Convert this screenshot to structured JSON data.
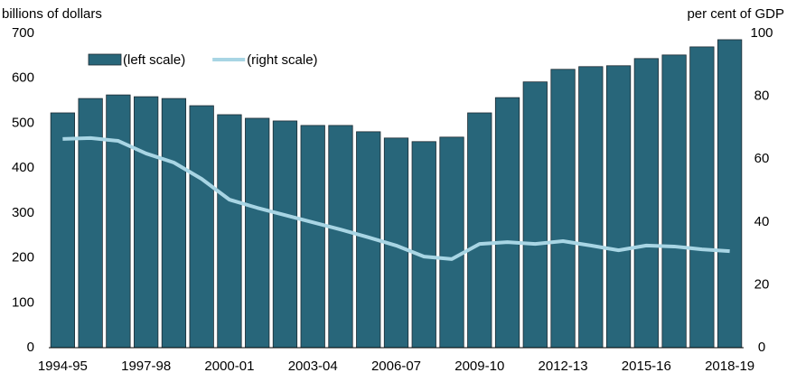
{
  "chart_data": {
    "type": "bar-line",
    "y_label": "billions of dollars",
    "y2_label": "per cent of GDP",
    "categories": [
      "1994-95",
      null,
      null,
      "1997-98",
      null,
      null,
      "2000-01",
      null,
      null,
      "2003-04",
      null,
      null,
      "2006-07",
      null,
      null,
      "2009-10",
      null,
      null,
      "2012-13",
      null,
      null,
      "2015-16",
      null,
      null,
      "2018-19"
    ],
    "series": [
      {
        "name": "(left scale)",
        "color": "#28667a",
        "type": "bar",
        "values": [
          523,
          555,
          563,
          559,
          555,
          539,
          519,
          511,
          505,
          495,
          495,
          481,
          467,
          459,
          469,
          523,
          557,
          592,
          620,
          626,
          628,
          644,
          652,
          670,
          686
        ]
      },
      {
        "name": "(right scale)",
        "color": "#a8d5e4",
        "type": "line",
        "axis": "y2",
        "values": [
          66.4,
          66.7,
          65.8,
          61.8,
          58.9,
          53.7,
          47.1,
          44.5,
          42.2,
          39.9,
          37.6,
          35.1,
          32.5,
          29.0,
          28.2,
          33.0,
          33.6,
          33.0,
          33.9,
          32.5,
          31.0,
          32.5,
          32.2,
          31.3,
          30.7
        ]
      }
    ],
    "ylim": [
      0,
      700
    ],
    "yticks": [
      0,
      100,
      200,
      300,
      400,
      500,
      600,
      700
    ],
    "y2lim": [
      0,
      100
    ],
    "y2ticks": [
      0,
      20,
      40,
      60,
      80,
      100
    ],
    "legend": "top-left"
  }
}
